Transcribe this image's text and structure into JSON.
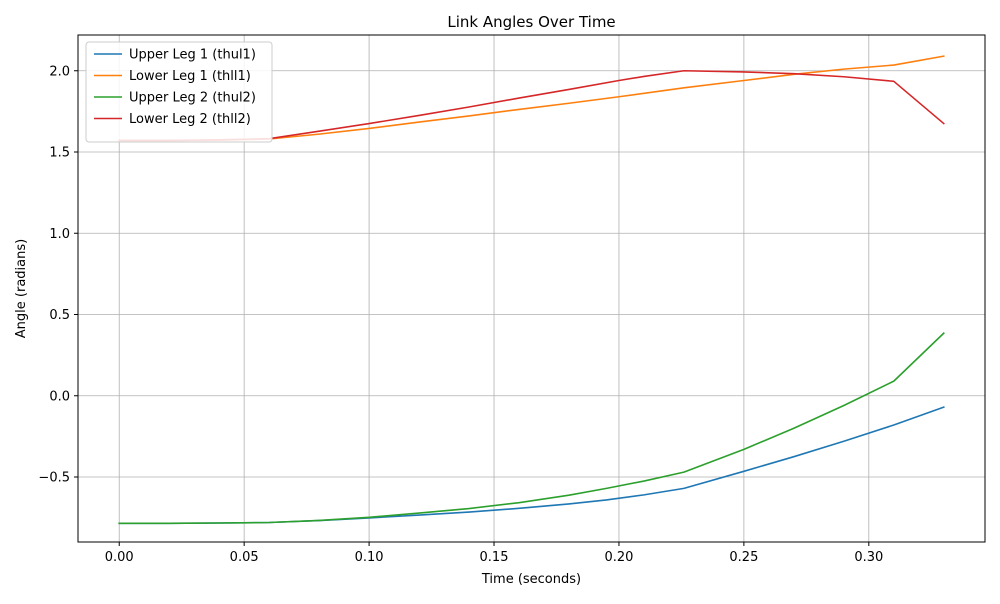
{
  "chart_data": {
    "type": "line",
    "title": "Link Angles Over Time",
    "xlabel": "Time (seconds)",
    "ylabel": "Angle (radians)",
    "xlim": [
      -0.0165,
      0.3465
    ],
    "ylim": [
      -0.9,
      2.22
    ],
    "xticks": [
      0.0,
      0.05,
      0.1,
      0.15,
      0.2,
      0.25,
      0.3
    ],
    "xtick_labels": [
      "0.00",
      "0.05",
      "0.10",
      "0.15",
      "0.20",
      "0.25",
      "0.30"
    ],
    "yticks": [
      -0.5,
      0.0,
      0.5,
      1.0,
      1.5,
      2.0
    ],
    "ytick_labels": [
      "−0.5",
      "0.0",
      "0.5",
      "1.0",
      "1.5",
      "2.0"
    ],
    "grid": true,
    "legend_position": "top-left",
    "series": [
      {
        "name": "Upper Leg 1 (thul1)",
        "color": "#1f77b4",
        "x": [
          0.0,
          0.02,
          0.04,
          0.06,
          0.08,
          0.1,
          0.12,
          0.14,
          0.16,
          0.18,
          0.195,
          0.21,
          0.226,
          0.25,
          0.27,
          0.29,
          0.31,
          0.33
        ],
        "y": [
          -0.785,
          -0.785,
          -0.783,
          -0.78,
          -0.768,
          -0.752,
          -0.734,
          -0.716,
          -0.693,
          -0.666,
          -0.641,
          -0.61,
          -0.57,
          -0.465,
          -0.375,
          -0.28,
          -0.18,
          -0.07
        ]
      },
      {
        "name": "Lower Leg 1 (thll1)",
        "color": "#ff7f0e",
        "x": [
          0.0,
          0.02,
          0.04,
          0.06,
          0.08,
          0.1,
          0.12,
          0.14,
          0.16,
          0.18,
          0.2,
          0.226,
          0.25,
          0.27,
          0.29,
          0.31,
          0.33
        ],
        "y": [
          1.571,
          1.571,
          1.573,
          1.58,
          1.61,
          1.645,
          1.684,
          1.722,
          1.762,
          1.8,
          1.84,
          1.895,
          1.94,
          1.978,
          2.01,
          2.035,
          2.09
        ]
      },
      {
        "name": "Upper Leg 2 (thul2)",
        "color": "#2ca02c",
        "x": [
          0.0,
          0.02,
          0.04,
          0.06,
          0.08,
          0.1,
          0.12,
          0.14,
          0.16,
          0.18,
          0.195,
          0.21,
          0.226,
          0.25,
          0.27,
          0.29,
          0.31,
          0.33
        ],
        "y": [
          -0.785,
          -0.785,
          -0.783,
          -0.78,
          -0.767,
          -0.748,
          -0.722,
          -0.694,
          -0.658,
          -0.612,
          -0.57,
          -0.525,
          -0.47,
          -0.33,
          -0.2,
          -0.06,
          0.09,
          0.385
        ]
      },
      {
        "name": "Lower Leg 2 (thll2)",
        "color": "#d62728",
        "x": [
          0.0,
          0.02,
          0.04,
          0.06,
          0.08,
          0.1,
          0.12,
          0.14,
          0.16,
          0.18,
          0.2,
          0.21,
          0.226,
          0.25,
          0.27,
          0.29,
          0.31,
          0.33
        ],
        "y": [
          1.571,
          1.571,
          1.575,
          1.582,
          1.628,
          1.675,
          1.725,
          1.777,
          1.832,
          1.885,
          1.94,
          1.965,
          2.0,
          1.993,
          1.982,
          1.963,
          1.935,
          1.675
        ]
      }
    ]
  }
}
